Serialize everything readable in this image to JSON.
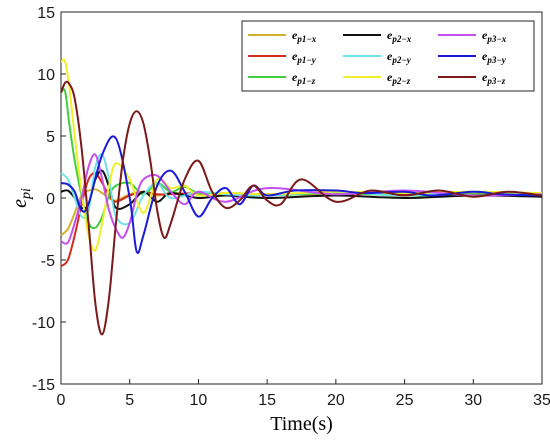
{
  "chart_data": {
    "type": "line",
    "title": "",
    "xlabel": "Time(s)",
    "ylabel": "e_pi",
    "ylabel_main": "e",
    "ylabel_sub": "pi",
    "xlim": [
      0,
      35
    ],
    "ylim": [
      -15,
      15
    ],
    "x_ticks": [
      0,
      5,
      10,
      15,
      20,
      25,
      30,
      35
    ],
    "y_ticks": [
      15,
      10,
      5,
      0,
      -5,
      -10,
      -15
    ],
    "x_tick_labels": [
      "0",
      "5",
      "10",
      "15",
      "20",
      "25",
      "30",
      "35"
    ],
    "y_tick_labels": [
      "15",
      "10",
      "5",
      "0",
      "-5",
      "-10",
      "-15"
    ],
    "grid": false,
    "legend_position": "top-right",
    "legend_columns": 3,
    "series": [
      {
        "name": "e_{p1-x}",
        "name_main": "e",
        "name_sub": "p1−x",
        "color": "#d4b12a",
        "x": [
          0,
          0.5,
          1,
          1.5,
          2,
          2.5,
          3,
          3.5,
          4,
          5,
          6,
          7,
          8,
          10,
          12,
          15,
          20,
          25,
          30,
          35
        ],
        "y": [
          -3,
          -2.5,
          -1.2,
          0.2,
          0.6,
          0.7,
          0.4,
          0.0,
          -0.2,
          0.3,
          0.5,
          0.2,
          0.4,
          0.3,
          0.4,
          0.3,
          0.3,
          0.4,
          0.3,
          0.3
        ]
      },
      {
        "name": "e_{p1-y}",
        "name_main": "e",
        "name_sub": "p1−y",
        "color": "#d62a1c",
        "x": [
          0,
          0.5,
          1,
          1.5,
          2,
          2.5,
          3,
          3.5,
          4,
          5,
          6,
          7,
          8,
          10,
          12,
          15,
          20,
          25,
          30,
          35
        ],
        "y": [
          -5.5,
          -5,
          -3,
          -0.5,
          1.5,
          2,
          1.2,
          0.2,
          -0.3,
          0.2,
          0.5,
          0.3,
          0.3,
          0.4,
          0.3,
          0.3,
          0.4,
          0.3,
          0.3,
          0.3
        ]
      },
      {
        "name": "e_{p1-z}",
        "name_main": "e",
        "name_sub": "p1−z",
        "color": "#3fcf3f",
        "x": [
          0,
          0.3,
          0.6,
          1,
          1.5,
          2,
          2.5,
          3,
          3.5,
          4,
          5,
          6,
          7,
          8,
          9,
          10,
          12,
          15,
          20,
          25,
          30,
          35
        ],
        "y": [
          8.5,
          8.6,
          6,
          3,
          0.2,
          -2,
          -2.4,
          -1.5,
          0.2,
          1.0,
          1.2,
          0.3,
          1.2,
          0.5,
          0.9,
          0.4,
          0.3,
          0.2,
          0.4,
          0.2,
          0.3,
          0.2
        ]
      },
      {
        "name": "e_{p2-x}",
        "name_main": "e",
        "name_sub": "p2−x",
        "color": "#111111",
        "x": [
          0,
          0.5,
          1,
          1.5,
          2,
          2.5,
          3,
          3.5,
          4,
          5,
          6,
          7,
          8,
          10,
          12,
          15,
          20,
          25,
          30,
          35
        ],
        "y": [
          0.5,
          0.6,
          0.0,
          -0.8,
          -0.5,
          1.5,
          2.2,
          0.9,
          -0.8,
          -0.5,
          0.5,
          -0.3,
          0.4,
          0.0,
          0.2,
          0.0,
          0.2,
          0.0,
          0.2,
          0.1
        ]
      },
      {
        "name": "e_{p2-y}",
        "name_main": "e",
        "name_sub": "p2−y",
        "color": "#6fe3ea",
        "x": [
          0,
          0.5,
          1,
          1.5,
          2,
          2.5,
          3,
          3.5,
          4,
          5,
          6,
          7,
          8,
          10,
          12,
          15,
          20,
          25,
          30,
          35
        ],
        "y": [
          2,
          1.5,
          0,
          -1.5,
          -1,
          2.5,
          3.5,
          1.5,
          -1.5,
          -2,
          0.2,
          1.2,
          0.0,
          0.5,
          0.3,
          0.2,
          0.5,
          0.2,
          0.5,
          0.3
        ]
      },
      {
        "name": "e_{p2-z}",
        "name_main": "e",
        "name_sub": "p2−z",
        "color": "#f0ef2a",
        "x": [
          0,
          0.3,
          0.6,
          1,
          1.5,
          2,
          2.5,
          3,
          3.5,
          4,
          5,
          6,
          7,
          8,
          9,
          10,
          12,
          15,
          20,
          25,
          30,
          35
        ],
        "y": [
          11,
          11,
          9,
          5,
          0.5,
          -3,
          -4.2,
          -2,
          1,
          2.8,
          1.5,
          -1.2,
          1.5,
          0.8,
          1.0,
          0.2,
          0.4,
          0.3,
          0.5,
          0.4,
          0.5,
          0.4
        ]
      },
      {
        "name": "e_{p3-x}",
        "name_main": "e",
        "name_sub": "p3−x",
        "color": "#c64ff0",
        "x": [
          0,
          0.5,
          1,
          1.5,
          2,
          2.5,
          3,
          3.5,
          4,
          4.5,
          5,
          5.5,
          6,
          7,
          8,
          9,
          10,
          12,
          15,
          20,
          25,
          30,
          35
        ],
        "y": [
          -3.5,
          -3.6,
          -2,
          0,
          2.5,
          3.5,
          1.5,
          -1,
          -2.5,
          -3.2,
          -2,
          0.2,
          1.5,
          1.8,
          0.5,
          -0.5,
          0.5,
          -0.3,
          0.8,
          0.3,
          0.6,
          0.2,
          0.3
        ]
      },
      {
        "name": "e_{p3-y}",
        "name_main": "e",
        "name_sub": "p3−y",
        "color": "#1a1ad8",
        "x": [
          0,
          0.5,
          1,
          1.5,
          2,
          3,
          4,
          5,
          5.5,
          6,
          7,
          8,
          9,
          10,
          11,
          12,
          13,
          14,
          15,
          17,
          20,
          22,
          25,
          27,
          30,
          32,
          35
        ],
        "y": [
          1.2,
          1.1,
          0.5,
          -1,
          -0.5,
          3.5,
          4.8,
          0,
          -4.3,
          -3,
          1,
          2.2,
          0.5,
          -1.5,
          0,
          0.8,
          -0.5,
          1.0,
          0.2,
          0.6,
          0.6,
          0.4,
          0.5,
          0.2,
          0.5,
          0.3,
          0.2
        ]
      },
      {
        "name": "e_{p3-z}",
        "name_main": "e",
        "name_sub": "p3−z",
        "color": "#7a1a1a",
        "x": [
          0,
          0.3,
          0.6,
          1,
          1.5,
          2,
          2.5,
          3,
          3.5,
          4,
          4.5,
          5,
          5.5,
          6,
          6.5,
          7,
          7.5,
          8,
          9,
          10,
          11,
          12,
          13,
          14,
          15,
          16,
          17.5,
          20,
          22.5,
          25,
          27.5,
          30,
          32.5,
          35
        ],
        "y": [
          8.5,
          9.3,
          9.2,
          8,
          4,
          -2,
          -8.5,
          -11,
          -8,
          -2,
          3,
          6,
          7,
          6,
          3,
          -1,
          -3.2,
          -2,
          1.5,
          3.0,
          0.5,
          -0.8,
          -0.2,
          1.0,
          -0.2,
          -0.5,
          1.5,
          -0.3,
          0.6,
          0.2,
          0.6,
          0.1,
          0.5,
          0.2
        ]
      }
    ]
  }
}
